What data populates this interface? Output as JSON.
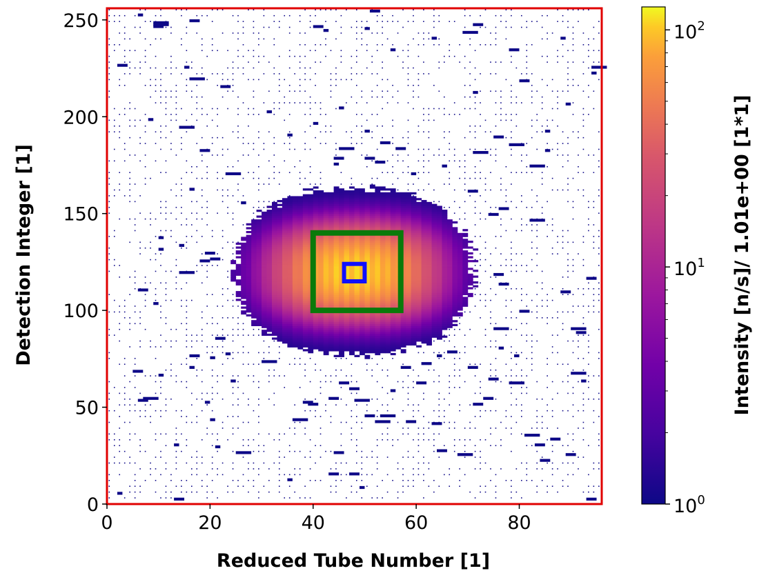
{
  "chart_data": {
    "type": "heatmap",
    "xlabel": "Reduced Tube Number [1]",
    "ylabel": "Detection Integer [1]",
    "xlim": [
      0,
      96
    ],
    "ylim": [
      0,
      256
    ],
    "x_ticks": [
      0,
      20,
      40,
      60,
      80
    ],
    "x_tick_labels": [
      "0",
      "20",
      "40",
      "60",
      "80"
    ],
    "y_ticks": [
      0,
      50,
      100,
      150,
      200,
      250
    ],
    "y_tick_labels": [
      "0",
      "50",
      "100",
      "150",
      "200",
      "250"
    ],
    "colorbar": {
      "label": "Intensity [n/s]/ 1.01e+00 [1*1]",
      "scale": "log",
      "range": [
        1,
        125
      ],
      "ticks": [
        {
          "value": 1,
          "base": "10",
          "exp": "0"
        },
        {
          "value": 10,
          "base": "10",
          "exp": "1"
        },
        {
          "value": 100,
          "base": "10",
          "exp": "2"
        }
      ],
      "colormap": "plasma"
    },
    "intensity_model": {
      "center": [
        48,
        120
      ],
      "peak": 110,
      "core_half_size": [
        14,
        22
      ],
      "halo_half_size": [
        23,
        43
      ],
      "halo_level": 1.2
    },
    "rectangles": [
      {
        "name": "outer-roi",
        "x0": 40,
        "x1": 57,
        "y0": 100,
        "y1": 140,
        "color": "#0a7a0a"
      },
      {
        "name": "inner-roi",
        "x0": 46,
        "x1": 50,
        "y0": 115,
        "y1": 124,
        "color": "#1010ff"
      }
    ],
    "frame_color": "#e00000"
  }
}
